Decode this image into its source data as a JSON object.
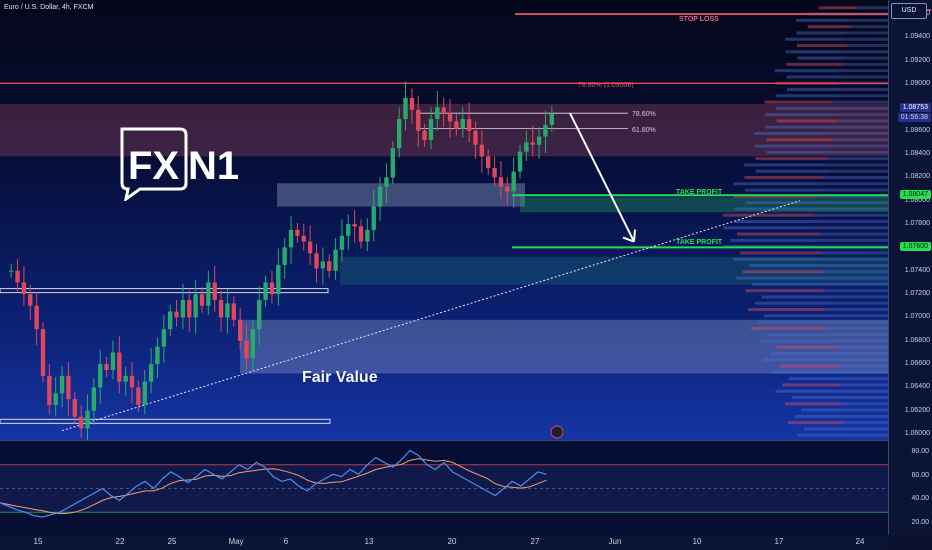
{
  "header": {
    "symbol_title": "Euro / U.S. Dollar, 4h, FXCM",
    "currency": "USD"
  },
  "price_axis": {
    "ticks": [
      "1.09600",
      "1.09400",
      "1.09200",
      "1.09000",
      "1.08800",
      "1.08600",
      "1.08400",
      "1.08200",
      "1.08000",
      "1.07800",
      "1.07600",
      "1.07400",
      "1.07200",
      "1.07000",
      "1.06800",
      "1.06600",
      "1.06400",
      "1.06200",
      "1.06000"
    ],
    "current_price": "1.08753",
    "countdown": "01:56:38",
    "tp1_tag": "1.08047",
    "tp2_tag": "1.07600"
  },
  "time_axis": {
    "ticks": [
      "15",
      "22",
      "25",
      "May",
      "6",
      "13",
      "20",
      "27",
      "Jun",
      "10",
      "17",
      "24"
    ]
  },
  "rsi_axis": {
    "ticks": [
      "80.00",
      "60.00",
      "40.00",
      "20.00"
    ]
  },
  "annotations": {
    "stop_loss": "STOP LOSS",
    "fib_786_top": "78.60% (1.09006)",
    "fib_786": "78.60%",
    "fib_618": "61.80%",
    "take_profit_1": "TAKE PROFIT",
    "take_profit_2": "TAKE PROFIT",
    "fair_value": "Fair Value"
  },
  "logo": {
    "text_fx": "FX",
    "text_n1": "N1"
  },
  "colors": {
    "bull": "#29a96e",
    "bear": "#e0475c",
    "take_profit": "#22e052",
    "stop_loss": "#d04f5e",
    "fib": "#e84850",
    "rsi_line": "#4a8ef0",
    "rsi_ma": "#f0a070"
  },
  "chart_data": {
    "type": "candlestick",
    "symbol": "EUR/USD",
    "timeframe": "4h",
    "ylim": [
      1.0595,
      1.0972
    ],
    "levels": {
      "stop_loss": 1.096,
      "fib_786_high": 1.09006,
      "fib_786": 1.0875,
      "fib_618": 1.0862,
      "take_profit_1": 1.08047,
      "take_profit_2": 1.076
    },
    "zones": [
      {
        "low": 1.0838,
        "high": 1.0883
      },
      {
        "low": 1.0795,
        "high": 1.0815
      },
      {
        "low": 1.0728,
        "high": 1.0752
      },
      {
        "low": 1.0652,
        "high": 1.0698
      }
    ],
    "close_path": [
      1.074,
      1.073,
      1.072,
      1.071,
      1.069,
      1.065,
      1.0625,
      1.0635,
      1.065,
      1.063,
      1.0615,
      1.0605,
      1.062,
      1.064,
      1.066,
      1.0655,
      1.067,
      1.0645,
      1.065,
      1.064,
      1.0625,
      1.0645,
      1.066,
      1.0675,
      1.069,
      1.0705,
      1.07,
      1.0715,
      1.07,
      1.072,
      1.071,
      1.073,
      1.0715,
      1.07,
      1.0712,
      1.0698,
      1.068,
      1.0665,
      1.069,
      1.0715,
      1.073,
      1.072,
      1.0745,
      1.076,
      1.0775,
      1.077,
      1.0765,
      1.0755,
      1.0742,
      1.0748,
      1.074,
      1.0758,
      1.077,
      1.078,
      1.0778,
      1.0765,
      1.0775,
      1.0795,
      1.0812,
      1.082,
      1.0845,
      1.087,
      1.0888,
      1.0878,
      1.086,
      1.0852,
      1.087,
      1.088,
      1.0875,
      1.0868,
      1.0862,
      1.087,
      1.086,
      1.0848,
      1.0838,
      1.0828,
      1.082,
      1.0812,
      1.0808,
      1.0825,
      1.0842,
      1.085,
      1.0848,
      1.0855,
      1.0865,
      1.0875
    ],
    "rsi": [
      38,
      35,
      32,
      30,
      27,
      26,
      28,
      30,
      34,
      38,
      42,
      46,
      50,
      44,
      40,
      46,
      52,
      56,
      50,
      58,
      64,
      60,
      55,
      60,
      66,
      62,
      58,
      64,
      70,
      66,
      72,
      68,
      60,
      56,
      58,
      52,
      48,
      54,
      58,
      62,
      60,
      66,
      62,
      70,
      76,
      72,
      68,
      74,
      82,
      78,
      70,
      66,
      72,
      64,
      60,
      56,
      52,
      48,
      44,
      50,
      56,
      52,
      58,
      64,
      62
    ]
  }
}
